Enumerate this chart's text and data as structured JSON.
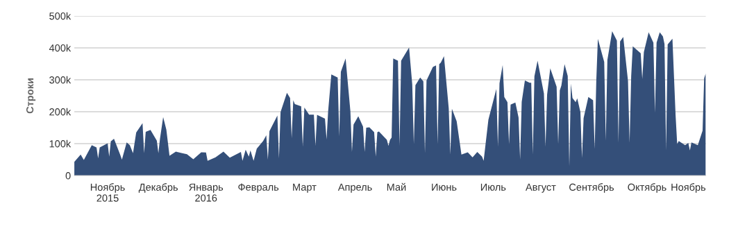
{
  "chart_data": {
    "type": "area",
    "ylabel": "Строки",
    "grid": "y",
    "legend": false,
    "xlim": [
      "2015-10-22",
      "2016-11-23"
    ],
    "xticks": [
      {
        "value": "2015-11-12",
        "label": "Ноябрь\n2015"
      },
      {
        "value": "2015-12-14",
        "label": "Декабрь"
      },
      {
        "value": "2016-01-13",
        "label": "Январь\n2016"
      },
      {
        "value": "2016-02-15",
        "label": "Февраль"
      },
      {
        "value": "2016-03-15",
        "label": "Март"
      },
      {
        "value": "2016-04-16",
        "label": "Апрель"
      },
      {
        "value": "2016-05-12",
        "label": "Май"
      },
      {
        "value": "2016-06-11",
        "label": "Июнь"
      },
      {
        "value": "2016-07-12",
        "label": "Июль"
      },
      {
        "value": "2016-08-11",
        "label": "Август"
      },
      {
        "value": "2016-09-12",
        "label": "Сентябрь"
      },
      {
        "value": "2016-10-17",
        "label": "Октябрь"
      },
      {
        "value": "2016-11-12",
        "label": "Ноябрь"
      }
    ],
    "ylim": [
      0,
      500
    ],
    "yticks": [
      {
        "value": 0,
        "label": "0"
      },
      {
        "value": 100,
        "label": "100k"
      },
      {
        "value": 200,
        "label": "200k"
      },
      {
        "value": 300,
        "label": "300k"
      },
      {
        "value": 400,
        "label": "400k"
      },
      {
        "value": 500,
        "label": "500k"
      }
    ],
    "x": [
      "2015-10-22",
      "2015-10-26",
      "2015-10-28",
      "2015-11-02",
      "2015-11-05",
      "2015-11-06",
      "2015-11-07",
      "2015-11-12",
      "2015-11-13",
      "2015-11-14",
      "2015-11-16",
      "2015-11-20",
      "2015-11-21",
      "2015-11-24",
      "2015-11-26",
      "2015-11-28",
      "2015-11-30",
      "2015-12-04",
      "2015-12-05",
      "2015-12-06",
      "2015-12-09",
      "2015-12-13",
      "2015-12-14",
      "2015-12-15",
      "2015-12-17",
      "2015-12-19",
      "2015-12-21",
      "2015-12-25",
      "2015-12-29",
      "2016-01-01",
      "2016-01-05",
      "2016-01-10",
      "2016-01-13",
      "2016-01-14",
      "2016-01-19",
      "2016-01-24",
      "2016-01-28",
      "2016-02-04",
      "2016-02-05",
      "2016-02-07",
      "2016-02-09",
      "2016-02-10",
      "2016-02-12",
      "2016-02-14",
      "2016-02-18",
      "2016-02-20",
      "2016-02-21",
      "2016-02-22",
      "2016-02-27",
      "2016-02-28",
      "2016-02-29",
      "2016-03-04",
      "2016-03-06",
      "2016-03-07",
      "2016-03-08",
      "2016-03-09",
      "2016-03-13",
      "2016-03-14",
      "2016-03-15",
      "2016-03-18",
      "2016-03-21",
      "2016-03-22",
      "2016-03-23",
      "2016-03-28",
      "2016-03-29",
      "2016-03-30",
      "2016-04-01",
      "2016-04-05",
      "2016-04-06",
      "2016-04-07",
      "2016-04-10",
      "2016-04-13",
      "2016-04-14",
      "2016-04-15",
      "2016-04-18",
      "2016-04-21",
      "2016-04-22",
      "2016-04-23",
      "2016-04-25",
      "2016-04-28",
      "2016-04-29",
      "2016-04-30",
      "2016-05-01",
      "2016-05-06",
      "2016-05-07",
      "2016-05-08",
      "2016-05-09",
      "2016-05-10",
      "2016-05-13",
      "2016-05-14",
      "2016-05-15",
      "2016-05-20",
      "2016-05-22",
      "2016-05-23",
      "2016-05-24",
      "2016-05-27",
      "2016-05-29",
      "2016-05-30",
      "2016-05-31",
      "2016-06-04",
      "2016-06-06",
      "2016-06-07",
      "2016-06-08",
      "2016-06-09",
      "2016-06-11",
      "2016-06-14",
      "2016-06-15",
      "2016-06-16",
      "2016-06-19",
      "2016-06-21",
      "2016-06-22",
      "2016-06-26",
      "2016-06-29",
      "2016-07-02",
      "2016-07-05",
      "2016-07-06",
      "2016-07-09",
      "2016-07-14",
      "2016-07-15",
      "2016-07-16",
      "2016-07-18",
      "2016-07-19",
      "2016-07-21",
      "2016-07-22",
      "2016-07-23",
      "2016-07-26",
      "2016-07-28",
      "2016-07-29",
      "2016-07-30",
      "2016-08-01",
      "2016-08-04",
      "2016-08-05",
      "2016-08-06",
      "2016-08-07",
      "2016-08-09",
      "2016-08-13",
      "2016-08-14",
      "2016-08-15",
      "2016-08-17",
      "2016-08-19",
      "2016-08-21",
      "2016-08-22",
      "2016-08-23",
      "2016-08-24",
      "2016-08-26",
      "2016-08-28",
      "2016-08-29",
      "2016-08-30",
      "2016-08-31",
      "2016-09-02",
      "2016-09-03",
      "2016-09-05",
      "2016-09-06",
      "2016-09-07",
      "2016-09-10",
      "2016-09-13",
      "2016-09-14",
      "2016-09-15",
      "2016-09-16",
      "2016-09-20",
      "2016-09-21",
      "2016-09-22",
      "2016-09-25",
      "2016-09-28",
      "2016-09-29",
      "2016-09-30",
      "2016-10-02",
      "2016-10-05",
      "2016-10-06",
      "2016-10-07",
      "2016-10-08",
      "2016-10-13",
      "2016-10-14",
      "2016-10-15",
      "2016-10-18",
      "2016-10-21",
      "2016-10-22",
      "2016-10-23",
      "2016-10-25",
      "2016-10-27",
      "2016-10-28",
      "2016-10-29",
      "2016-10-30",
      "2016-11-02",
      "2016-11-04",
      "2016-11-05",
      "2016-11-06",
      "2016-11-10",
      "2016-11-12",
      "2016-11-13",
      "2016-11-14",
      "2016-11-18",
      "2016-11-21",
      "2016-11-22",
      "2016-11-23"
    ],
    "series": [
      {
        "color": "#344f79",
        "values": [
          43,
          66,
          49,
          95,
          88,
          54,
          88,
          101,
          59,
          107,
          115,
          64,
          50,
          104,
          95,
          70,
          135,
          164,
          70,
          137,
          143,
          109,
          70,
          115,
          183,
          144,
          62,
          75,
          70,
          67,
          51,
          73,
          72,
          46,
          57,
          75,
          56,
          74,
          46,
          81,
          59,
          79,
          46,
          84,
          108,
          126,
          50,
          139,
          188,
          54,
          199,
          259,
          243,
          117,
          236,
          224,
          217,
          90,
          213,
          191,
          191,
          93,
          190,
          178,
          113,
          202,
          317,
          307,
          122,
          325,
          367,
          202,
          74,
          160,
          186,
          153,
          74,
          150,
          151,
          136,
          59,
          136,
          138,
          112,
          93,
          112,
          119,
          367,
          360,
          93,
          360,
          401,
          286,
          98,
          283,
          307,
          295,
          70,
          298,
          340,
          345,
          98,
          349,
          354,
          374,
          211,
          66,
          209,
          170,
          101,
          66,
          73,
          57,
          74,
          59,
          46,
          175,
          271,
          90,
          289,
          346,
          246,
          230,
          98,
          222,
          229,
          182,
          50,
          231,
          298,
          291,
          291,
          66,
          311,
          360,
          257,
          90,
          253,
          336,
          307,
          278,
          98,
          267,
          282,
          349,
          312,
          28,
          288,
          243,
          230,
          242,
          199,
          55,
          180,
          246,
          236,
          83,
          296,
          428,
          356,
          109,
          362,
          452,
          423,
          102,
          420,
          434,
          296,
          102,
          311,
          405,
          383,
          302,
          387,
          449,
          416,
          196,
          416,
          449,
          436,
          412,
          79,
          411,
          429,
          188,
          99,
          108,
          95,
          102,
          79,
          104,
          95,
          141,
          305,
          320
        ]
      }
    ]
  }
}
